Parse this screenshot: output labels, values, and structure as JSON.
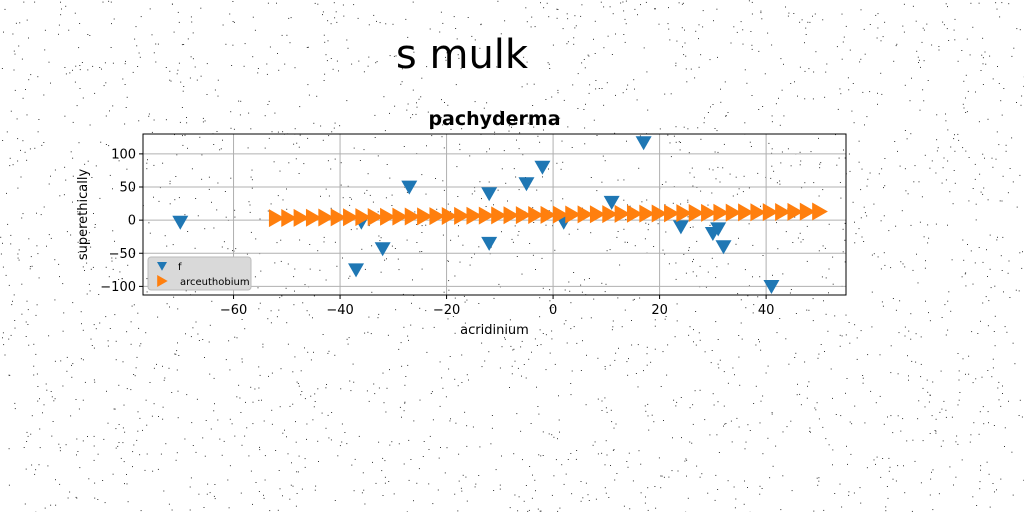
{
  "page": {
    "heading": "s mulk"
  },
  "chart_data": {
    "type": "scatter",
    "title": "pachyderma",
    "xlabel": "acridinium",
    "ylabel": "superethically",
    "xlim": [
      -77,
      55
    ],
    "ylim": [
      -113,
      130
    ],
    "xticks": [
      -60,
      -40,
      -20,
      0,
      20,
      40
    ],
    "yticks": [
      -100,
      -50,
      0,
      50,
      100
    ],
    "grid": true,
    "legend_position": "lower-left",
    "series": [
      {
        "name": "f",
        "marker": "triangle-down",
        "color": "#1f77b4",
        "points": [
          [
            -70,
            -3
          ],
          [
            -36,
            -3
          ],
          [
            -37,
            -75
          ],
          [
            -32,
            -43
          ],
          [
            -27,
            50
          ],
          [
            -12,
            40
          ],
          [
            -12,
            -35
          ],
          [
            -5,
            55
          ],
          [
            -2,
            80
          ],
          [
            2,
            -3
          ],
          [
            11,
            27
          ],
          [
            17,
            117
          ],
          [
            24,
            -10
          ],
          [
            30,
            -20
          ],
          [
            31,
            -13
          ],
          [
            32,
            -40
          ],
          [
            41,
            -100
          ]
        ]
      },
      {
        "name": "arceuthobium",
        "marker": "triangle-right",
        "color": "#ff7f0e",
        "x_start": -52,
        "x_end": 50,
        "y_start": 3,
        "y_end": 13,
        "count": 45
      }
    ]
  }
}
